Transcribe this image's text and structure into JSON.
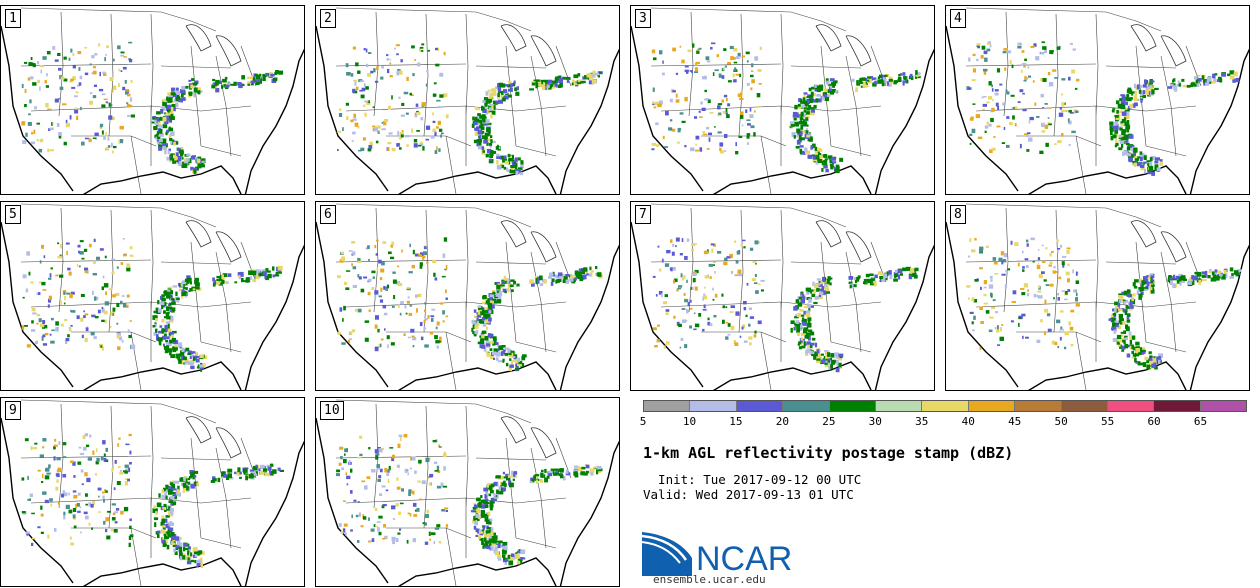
{
  "panels": [
    {
      "label": "1"
    },
    {
      "label": "2"
    },
    {
      "label": "3"
    },
    {
      "label": "4"
    },
    {
      "label": "5"
    },
    {
      "label": "6"
    },
    {
      "label": "7"
    },
    {
      "label": "8"
    },
    {
      "label": "9"
    },
    {
      "label": "10"
    }
  ],
  "colorbar": {
    "colors": [
      "#a0a0a0",
      "#b4bde8",
      "#5a5ad4",
      "#4a9090",
      "#008000",
      "#b8dcb0",
      "#e8d868",
      "#e8a820",
      "#b87c38",
      "#8c5c3c",
      "#f05080",
      "#701838",
      "#b050a8"
    ],
    "ticks": [
      "5",
      "10",
      "15",
      "20",
      "25",
      "30",
      "35",
      "40",
      "45",
      "50",
      "55",
      "60",
      "65"
    ]
  },
  "title": "1-km AGL reflectivity postage stamp (dBZ)",
  "init_line": "  Init: Tue 2017-09-12 00 UTC",
  "valid_line": "Valid: Wed 2017-09-13 01 UTC",
  "logo": {
    "text": "NCAR",
    "url": "ensemble.ucar.edu",
    "color": "#1060b0"
  }
}
